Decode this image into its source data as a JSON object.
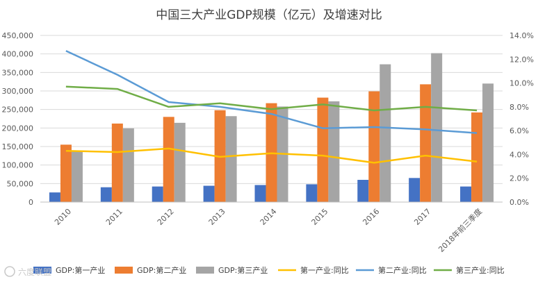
{
  "chart_data": {
    "type": "bar",
    "title": "中国三大产业GDP规模（亿元）及增速对比",
    "categories": [
      "2010",
      "2011",
      "2012",
      "2013",
      "2014",
      "2015",
      "2016",
      "2017",
      "2018年前三季度"
    ],
    "y_left": {
      "min": 0,
      "max": 450000,
      "step": 50000,
      "tick_labels": [
        "0",
        "50,000",
        "100,000",
        "150,000",
        "200,000",
        "250,000",
        "300,000",
        "350,000",
        "400,000",
        "450,000"
      ]
    },
    "y_right": {
      "min": 0,
      "max": 14,
      "step": 2,
      "tick_labels": [
        "0.0%",
        "2.0%",
        "4.0%",
        "6.0%",
        "8.0%",
        "10.0%",
        "12.0%",
        "14.0%"
      ]
    },
    "bar_series": [
      {
        "name": "GDP:第一产业",
        "color": "#4472c4",
        "values": [
          26000,
          40000,
          42000,
          44000,
          46000,
          48000,
          60000,
          65000,
          42000
        ]
      },
      {
        "name": "GDP:第二产业",
        "color": "#ed7d31",
        "values": [
          155000,
          212000,
          230000,
          248000,
          267000,
          282000,
          299000,
          318000,
          242000
        ]
      },
      {
        "name": "GDP:第三产业",
        "color": "#a5a5a5",
        "values": [
          138000,
          199000,
          214000,
          232000,
          258000,
          272000,
          372000,
          402000,
          320000
        ]
      }
    ],
    "line_series": [
      {
        "name": "第一产业:同比",
        "color": "#ffc000",
        "values": [
          4.3,
          4.2,
          4.5,
          3.8,
          4.1,
          3.9,
          3.3,
          3.9,
          3.4
        ]
      },
      {
        "name": "第二产业:同比",
        "color": "#5b9bd5",
        "values": [
          12.7,
          10.7,
          8.4,
          8.0,
          7.4,
          6.2,
          6.3,
          6.1,
          5.8
        ]
      },
      {
        "name": "第三产业:同比",
        "color": "#70ad47",
        "values": [
          9.7,
          9.5,
          8.0,
          8.3,
          7.8,
          8.2,
          7.7,
          8.0,
          7.7
        ]
      }
    ],
    "gridlines": true,
    "legend_position": "bottom"
  },
  "watermark": "六度联盟"
}
